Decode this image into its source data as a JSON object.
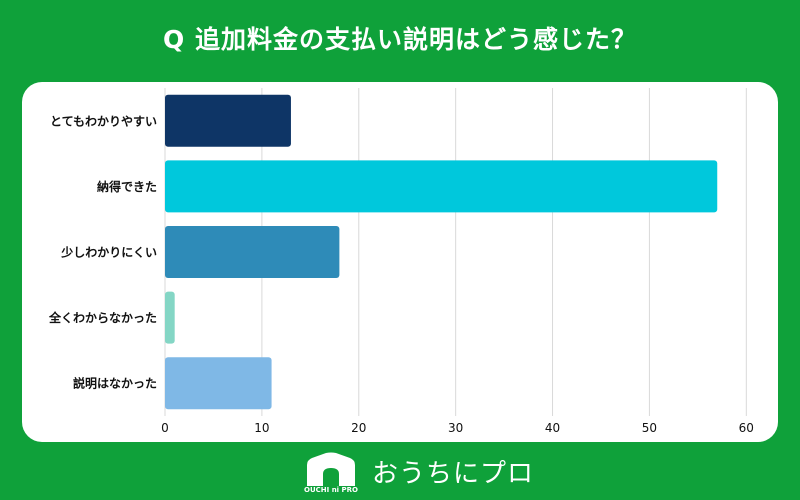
{
  "title": "Q 追加料金の支払い説明はどう感じた？",
  "colors": {
    "background": "#0fa13a",
    "card": "#ffffff",
    "grid": "#d9d9d9",
    "text": "#111111"
  },
  "chart_data": {
    "type": "bar",
    "orientation": "horizontal",
    "categories": [
      "とてもわかりやすい",
      "納得できた",
      "少しわかりにくい",
      "全くわからなかった",
      "説明はなかった"
    ],
    "values": [
      13,
      57,
      18,
      1,
      11
    ],
    "colors": [
      "#0e3566",
      "#00c8dc",
      "#2e8bb8",
      "#84d6c5",
      "#7fb8e6"
    ],
    "xticks": [
      0,
      10,
      20,
      30,
      40,
      50,
      60
    ],
    "xlim": [
      0,
      61
    ],
    "grid": true
  },
  "footer": {
    "brand": "おうちにプロ",
    "logo_small_text": "OUCHI ni PRO",
    "logo_icon": "house-icon"
  }
}
